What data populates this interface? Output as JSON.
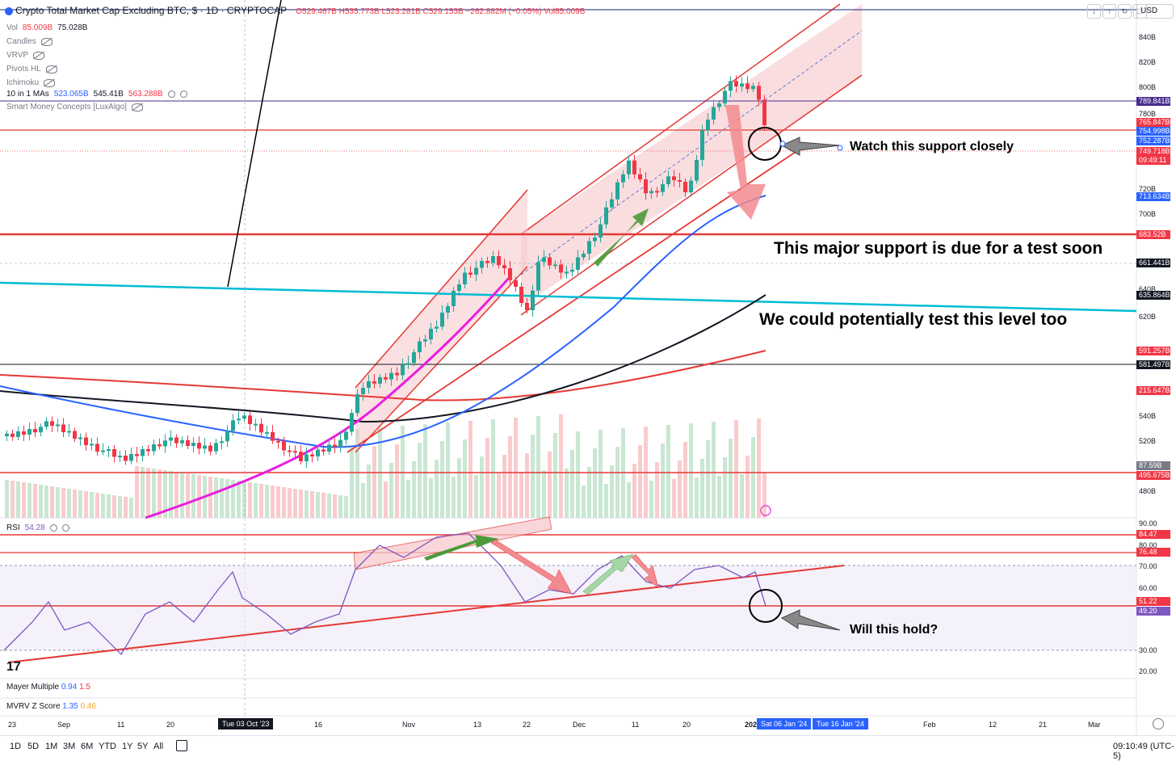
{
  "header": {
    "title": "Crypto Total Market Cap Excluding BTC, $ · 1D · CRYPTOCAP",
    "open": "O529.467B",
    "high": "H535.773B",
    "low": "L523.281B",
    "close": "C529.153B",
    "change": "−262.882M (−0.05%)",
    "vol": "Vol85.009B",
    "currency": "USD"
  },
  "indicators": {
    "vol_label": "Vol",
    "vol_v1": "85.009B",
    "vol_v2": "75.028B",
    "candles": "Candles",
    "vrvp": "VRVP",
    "pivots": "Pivots HL",
    "ichimoku": "Ichimoku",
    "ma_label": "10 in 1 MAs",
    "ma_v1": "523.065B",
    "ma_v2": "545.41B",
    "ma_v3": "563.288B",
    "smc": "Smart Money Concepts [LuxAlgo]"
  },
  "price_axis": [
    "840B",
    "820B",
    "800B",
    "780B",
    "720B",
    "700B",
    "640B",
    "620B",
    "540B",
    "520B",
    "480B"
  ],
  "price_labels": [
    {
      "text": "789.841B",
      "color": "#4a2d8f"
    },
    {
      "text": "765.847B",
      "color": "#f23645"
    },
    {
      "text": "754.998B",
      "color": "#2962ff"
    },
    {
      "text": "752.287B",
      "color": "#2962ff"
    },
    {
      "text": "749.718B",
      "color": "#f23645"
    },
    {
      "text": "09:49:11",
      "color": "#f23645"
    },
    {
      "text": "713.634B",
      "color": "#2962ff"
    },
    {
      "text": "683.52B",
      "color": "#f23645"
    },
    {
      "text": "661.441B",
      "color": "#131722"
    },
    {
      "text": "635.864B",
      "color": "#131722"
    },
    {
      "text": "591.257B",
      "color": "#f23645"
    },
    {
      "text": "581.497B",
      "color": "#131722"
    },
    {
      "text": "215.647B",
      "color": "#f23645"
    },
    {
      "text": "87.59B",
      "color": "#787b86"
    },
    {
      "text": "495.675B",
      "color": "#f23645"
    }
  ],
  "rsi": {
    "label": "RSI",
    "value": "54.28",
    "axis": [
      "90.00",
      "80.00",
      "70.00",
      "60.00",
      "30.00",
      "20.00"
    ],
    "labels": [
      {
        "text": "84.47",
        "color": "#f23645"
      },
      {
        "text": "76.48",
        "color": "#f23645"
      },
      {
        "text": "51.22",
        "color": "#f23645"
      },
      {
        "text": "49.20",
        "color": "#7e57c2"
      }
    ]
  },
  "mayer": {
    "label": "Mayer Multiple",
    "v1": "0.94",
    "v2": "1.5"
  },
  "mvrv": {
    "label": "MVRV Z Score",
    "v1": "1.35",
    "v2": "0.46"
  },
  "time_axis": [
    "23",
    "Sep",
    "11",
    "20",
    "16",
    "Nov",
    "13",
    "22",
    "Dec",
    "11",
    "20",
    "202",
    "Feb",
    "12",
    "21",
    "Mar"
  ],
  "time_badges": {
    "cursor": "Tue 03 Oct '23",
    "b1": "Sat 06 Jan '24",
    "b2": "Tue 16 Jan '24"
  },
  "timeframes": [
    "1D",
    "5D",
    "1M",
    "3M",
    "6M",
    "YTD",
    "1Y",
    "5Y",
    "All"
  ],
  "clock": "09:10:49 (UTC-5)",
  "annotations": {
    "a1": "Watch this support closely",
    "a2": "This major support is due for a test soon",
    "a3": "We could potentially test this level too",
    "a4": "Will this hold?"
  },
  "colors": {
    "up": "#26a69a",
    "down": "#f23645",
    "channel": "#f7c6ca",
    "rsi": "#7e57c2",
    "ma50": "#2962ff",
    "ma200": "#e53935",
    "cyan": "#00bcd4"
  }
}
